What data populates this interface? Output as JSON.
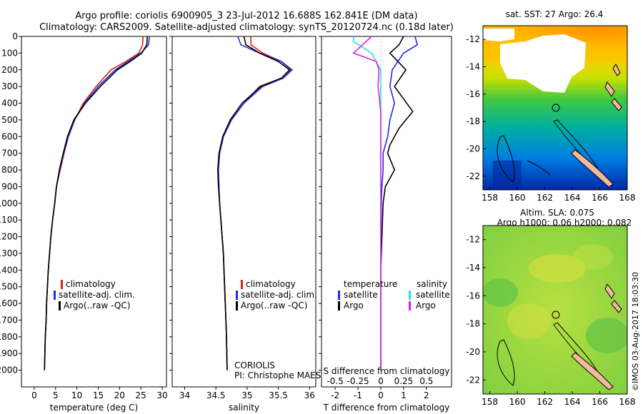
{
  "header": {
    "line1": "Argo profile: coriolis 6900905_3 23-Jul-2012 16.688S 162.841E (DM data)",
    "line2": "Climatology: CARS2009. Satellite-adjusted climatology: synTS_20120724.nc (0.18d later)"
  },
  "colors": {
    "climatology": "#e0201c",
    "satellite": "#1c2ee0",
    "argo": "#000000",
    "satellite_salinity_diff": "#22e0e0",
    "argo_salinity_diff": "#e020e0"
  },
  "legend_main": {
    "climatology": "climatology",
    "satellite": "satellite-adj. clim.",
    "argo": "Argo(..raw -QC)"
  },
  "legend_diff": {
    "temperature_title": "temperature",
    "salinity_title": "salinity",
    "satellite": "satellite",
    "argo": "Argo"
  },
  "annotations": {
    "institution": "CORIOLIS",
    "pi": "PI: Christophe MAES"
  },
  "map_titles": {
    "sst": "sat. SST: 27 Argo: 26.4",
    "sla_line1": "Altim. SLA: 0.075",
    "sla_line2": "Argo h1000: 0.06 h2000: 0.082"
  },
  "footer": "©IMOS 03-Aug-2017 18:03:30",
  "chart_data": [
    {
      "type": "line",
      "xlabel": "temperature (deg C)",
      "ylabel": "",
      "xlim": [
        -3,
        31
      ],
      "ylim": [
        0,
        2100
      ],
      "y_reversed": true,
      "xticks": [
        "0",
        "5",
        "10",
        "15",
        "20",
        "25",
        "30"
      ],
      "yticks": [
        "0",
        "100",
        "200",
        "300",
        "400",
        "500",
        "600",
        "700",
        "800",
        "900",
        "1000",
        "1100",
        "1200",
        "1300",
        "1400",
        "1500",
        "1600",
        "1700",
        "1800",
        "1900",
        "2000"
      ],
      "series": [
        {
          "name": "climatology",
          "color": "#e0201c",
          "x": [
            25.5,
            25.4,
            24.5,
            21.5,
            18.0,
            14.5,
            11.5,
            9.5,
            8.0,
            7.0,
            6.1,
            5.2,
            4.8,
            4.3,
            3.9,
            3.6,
            3.3,
            3.1,
            2.9,
            2.8,
            2.6,
            2.5,
            2.4
          ],
          "y": [
            0,
            50,
            100,
            150,
            200,
            300,
            400,
            500,
            600,
            700,
            800,
            900,
            1000,
            1100,
            1200,
            1300,
            1400,
            1500,
            1600,
            1700,
            1800,
            1900,
            2000
          ]
        },
        {
          "name": "satellite-adj. clim.",
          "color": "#1c2ee0",
          "x": [
            27.0,
            26.8,
            25.0,
            22.0,
            19.0,
            15.0,
            11.8,
            9.5,
            8.0,
            6.9,
            6.0,
            5.2,
            4.8,
            4.3,
            3.9,
            3.6,
            3.3,
            3.1,
            2.9,
            2.8,
            2.6,
            2.5,
            2.4
          ],
          "y": [
            0,
            50,
            100,
            150,
            200,
            300,
            400,
            500,
            600,
            700,
            800,
            900,
            1000,
            1100,
            1200,
            1300,
            1400,
            1500,
            1600,
            1700,
            1800,
            1900,
            2000
          ]
        },
        {
          "name": "Argo(..raw -QC)",
          "color": "#000000",
          "x": [
            26.5,
            26.4,
            25.2,
            22.5,
            19.5,
            15.5,
            12.0,
            9.3,
            7.8,
            6.8,
            5.9,
            5.2,
            4.8,
            4.3,
            3.9,
            3.6,
            3.3,
            3.1,
            2.9,
            2.8,
            2.6,
            2.5,
            2.4
          ],
          "y": [
            0,
            50,
            100,
            150,
            200,
            300,
            400,
            500,
            600,
            700,
            800,
            900,
            1000,
            1100,
            1200,
            1300,
            1400,
            1500,
            1600,
            1700,
            1800,
            1900,
            2000
          ]
        }
      ]
    },
    {
      "type": "line",
      "xlabel": "salinity",
      "ylabel": "",
      "xlim": [
        33.8,
        36.1
      ],
      "ylim": [
        0,
        2100
      ],
      "y_reversed": true,
      "xticks": [
        "34",
        "34.5",
        "35",
        "35.5",
        "36"
      ],
      "series": [
        {
          "name": "climatology",
          "color": "#e0201c",
          "x": [
            35.06,
            35.06,
            35.25,
            35.55,
            35.7,
            35.55,
            35.2,
            34.95,
            34.75,
            34.62,
            34.56,
            34.54,
            34.55,
            34.56,
            34.58,
            34.6,
            34.62,
            34.63,
            34.64,
            34.65,
            34.66,
            34.67,
            34.68
          ],
          "y": [
            0,
            50,
            100,
            150,
            200,
            250,
            300,
            400,
            500,
            600,
            700,
            800,
            900,
            1000,
            1100,
            1200,
            1300,
            1400,
            1500,
            1600,
            1700,
            1800,
            2000
          ]
        },
        {
          "name": "satellite-adj. clim.",
          "color": "#1c2ee0",
          "x": [
            34.85,
            34.9,
            35.2,
            35.55,
            35.72,
            35.58,
            35.25,
            34.95,
            34.75,
            34.62,
            34.56,
            34.54,
            34.55,
            34.56,
            34.58,
            34.6,
            34.62,
            34.63,
            34.64,
            34.65,
            34.66,
            34.67,
            34.68
          ],
          "y": [
            0,
            50,
            100,
            150,
            200,
            250,
            300,
            400,
            500,
            600,
            700,
            800,
            900,
            1000,
            1100,
            1200,
            1300,
            1400,
            1500,
            1600,
            1700,
            1800,
            2000
          ]
        },
        {
          "name": "Argo(..raw -QC)",
          "color": "#000000",
          "x": [
            34.95,
            34.98,
            35.2,
            35.5,
            35.68,
            35.55,
            35.22,
            34.92,
            34.73,
            34.61,
            34.55,
            34.53,
            34.54,
            34.56,
            34.58,
            34.6,
            34.62,
            34.63,
            34.64,
            34.65,
            34.66,
            34.67,
            34.68
          ],
          "y": [
            0,
            50,
            100,
            150,
            200,
            250,
            300,
            400,
            500,
            600,
            700,
            800,
            900,
            1000,
            1100,
            1200,
            1300,
            1400,
            1500,
            1600,
            1700,
            1800,
            2000
          ]
        }
      ]
    },
    {
      "type": "line",
      "xlabel": "T difference from climatology",
      "xlabel_top": "S difference from climatology",
      "xlim": [
        -2.6,
        3.1
      ],
      "ylim": [
        0,
        2100
      ],
      "y_reversed": true,
      "xticks": [
        "-2",
        "-1",
        "0",
        "1",
        "2"
      ],
      "xticks_top": [
        "-0.5",
        "-0.25",
        "0",
        "0.25",
        "0.5"
      ],
      "series": [
        {
          "name": "temperature satellite",
          "color": "#1c2ee0",
          "x": [
            1.5,
            1.6,
            1.0,
            0.5,
            0.4,
            0.6,
            0.4,
            0.3,
            0.1,
            0.1,
            0.05,
            0.02,
            0.01,
            0.0,
            0.0,
            0.0,
            0.0,
            0.0,
            0.0
          ],
          "y": [
            0,
            50,
            100,
            200,
            300,
            400,
            500,
            600,
            700,
            800,
            900,
            1000,
            1200,
            1400,
            1500,
            1600,
            1700,
            1800,
            2000
          ]
        },
        {
          "name": "temperature Argo",
          "color": "#000000",
          "x": [
            1.0,
            0.8,
            0.4,
            1.1,
            0.6,
            1.4,
            0.8,
            0.4,
            0.3,
            0.6,
            0.2,
            0.1,
            0.05,
            0.0,
            0.0,
            0.0,
            0.0,
            0.0,
            0.0
          ],
          "y": [
            0,
            50,
            100,
            200,
            300,
            450,
            550,
            650,
            700,
            800,
            900,
            1000,
            1200,
            1400,
            1500,
            1600,
            1700,
            1800,
            2000
          ]
        },
        {
          "name": "salinity satellite",
          "color": "#22e0e0",
          "x": [
            -0.3,
            -0.3,
            -0.1,
            0.0,
            0.0,
            0.0,
            0.0,
            0.0,
            0.0,
            0.0,
            0.0,
            0.0,
            0.0,
            0.0,
            0.0,
            0.0,
            0.0
          ],
          "y": [
            0,
            30,
            100,
            200,
            300,
            400,
            500,
            600,
            700,
            800,
            900,
            1000,
            1200,
            1500,
            1700,
            1800,
            2000
          ]
        },
        {
          "name": "salinity Argo",
          "color": "#e020e0",
          "x": [
            -0.1,
            -0.3,
            -0.05,
            -0.02,
            -0.03,
            0.0,
            0.0,
            0.0,
            0.0,
            0.0,
            0.0,
            0.0,
            0.0,
            0.0,
            0.0,
            0.0
          ],
          "y": [
            0,
            100,
            150,
            200,
            300,
            450,
            550,
            700,
            800,
            900,
            1000,
            1200,
            1500,
            1700,
            1800,
            2000
          ]
        }
      ]
    },
    {
      "type": "heatmap",
      "title": "sat. SST: 27 Argo: 26.4",
      "xticks": [
        "158",
        "160",
        "162",
        "164",
        "166",
        "168"
      ],
      "yticks": [
        "-12",
        "-14",
        "-16",
        "-18",
        "-20",
        "-22"
      ],
      "xlim": [
        157.5,
        168
      ],
      "ylim": [
        -23,
        -11
      ],
      "marker": {
        "lon": 162.841,
        "lat": -16.688
      }
    },
    {
      "type": "heatmap",
      "title": "Altim. SLA: 0.075",
      "xticks": [
        "158",
        "160",
        "162",
        "164",
        "166",
        "168"
      ],
      "yticks": [
        "-12",
        "-14",
        "-16",
        "-18",
        "-20",
        "-22"
      ],
      "xlim": [
        157.5,
        168
      ],
      "ylim": [
        -23,
        -11
      ],
      "marker": {
        "lon": 162.841,
        "lat": -16.688
      }
    }
  ]
}
